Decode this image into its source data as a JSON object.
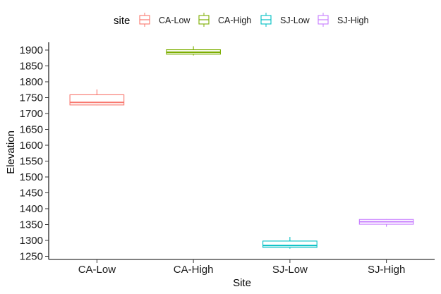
{
  "chart_data": {
    "type": "box",
    "xlabel": "Site",
    "ylabel": "Elevation",
    "ylim": [
      1240,
      1920
    ],
    "yticks": [
      1250,
      1300,
      1350,
      1400,
      1450,
      1500,
      1550,
      1600,
      1650,
      1700,
      1750,
      1800,
      1850,
      1900
    ],
    "grid": false,
    "legend": {
      "title": "site",
      "position": "top",
      "entries": [
        "CA-Low",
        "CA-High",
        "SJ-Low",
        "SJ-High"
      ]
    },
    "categories": [
      "CA-Low",
      "CA-High",
      "SJ-Low",
      "SJ-High"
    ],
    "boxes": [
      {
        "name": "CA-Low",
        "color": "#F8766D",
        "min": 1726,
        "q1": 1727,
        "median": 1735,
        "q3": 1759,
        "max": 1776
      },
      {
        "name": "CA-High",
        "color": "#7CAE00",
        "min": 1883,
        "q1": 1887,
        "median": 1893,
        "q3": 1901,
        "max": 1912
      },
      {
        "name": "SJ-Low",
        "color": "#00BFC4",
        "min": 1274,
        "q1": 1278,
        "median": 1284,
        "q3": 1298,
        "max": 1311
      },
      {
        "name": "SJ-High",
        "color": "#C77CFF",
        "min": 1343,
        "q1": 1351,
        "median": 1359,
        "q3": 1366,
        "max": 1367
      }
    ]
  }
}
